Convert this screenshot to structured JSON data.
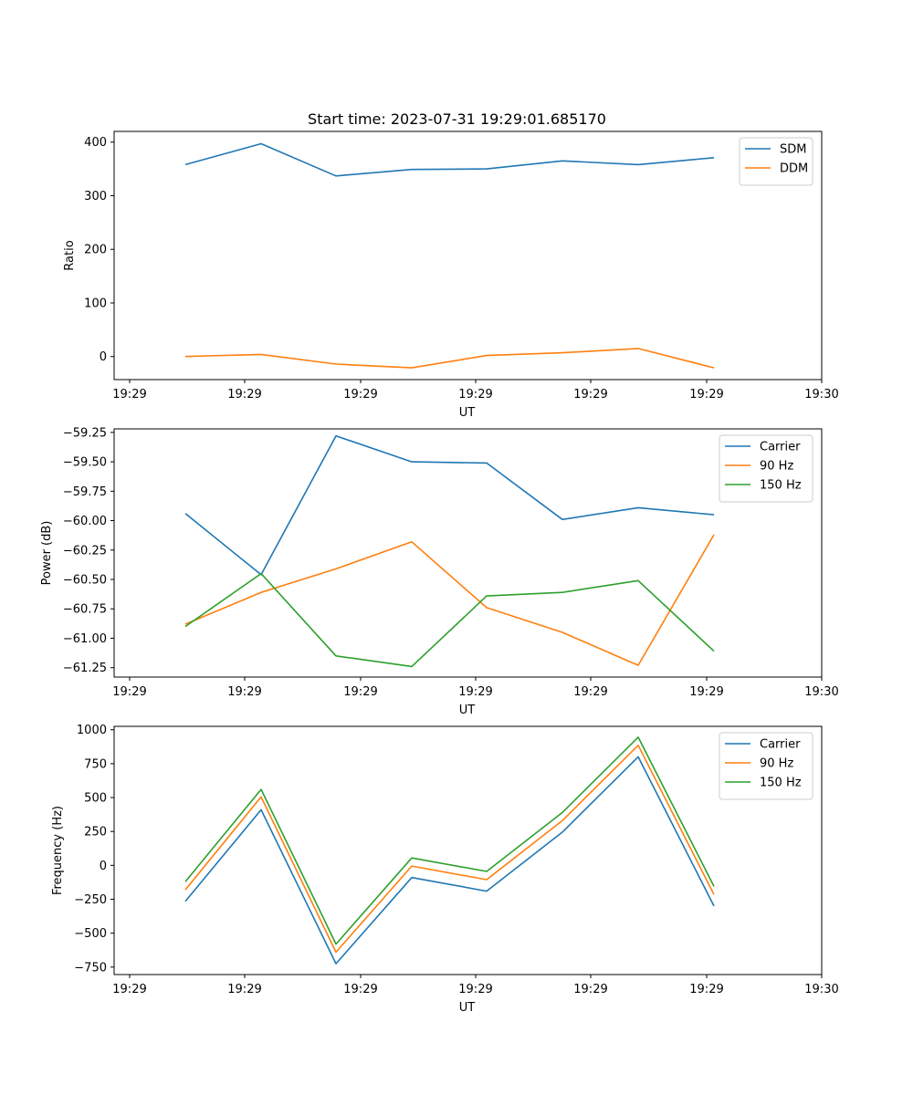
{
  "chart_data": [
    {
      "type": "line",
      "title": "Start time: 2023-07-31 19:29:01.685170",
      "xlabel": "UT",
      "ylabel": "Ratio",
      "xticks": [
        "19:29",
        "19:29",
        "19:29",
        "19:29",
        "19:29",
        "19:29",
        "19:30"
      ],
      "yticks": [
        "0",
        "100",
        "200",
        "300",
        "400"
      ],
      "ylim": [
        -43,
        420
      ],
      "legend_position": "top-right",
      "series": [
        {
          "name": "SDM",
          "color": "#1f77b4",
          "values": [
            358,
            397,
            337,
            349,
            350,
            365,
            358,
            371
          ]
        },
        {
          "name": "DDM",
          "color": "#ff7f0e",
          "values": [
            0,
            4,
            -14,
            -21,
            2,
            7,
            15,
            -21
          ]
        }
      ]
    },
    {
      "type": "line",
      "title": "",
      "xlabel": "UT",
      "ylabel": "Power (dB)",
      "xticks": [
        "19:29",
        "19:29",
        "19:29",
        "19:29",
        "19:29",
        "19:29",
        "19:30"
      ],
      "yticks": [
        "−61.25",
        "−61.00",
        "−60.75",
        "−60.50",
        "−60.25",
        "−60.00",
        "−59.75",
        "−59.50",
        "−59.25"
      ],
      "ylim": [
        -61.33,
        -59.22
      ],
      "legend_position": "top-right",
      "series": [
        {
          "name": "Carrier",
          "color": "#1f77b4",
          "values": [
            -59.94,
            -60.46,
            -59.28,
            -59.5,
            -59.51,
            -59.99,
            -59.89,
            -59.95
          ]
        },
        {
          "name": "90 Hz",
          "color": "#ff7f0e",
          "values": [
            -60.88,
            -60.61,
            -60.41,
            -60.18,
            -60.74,
            -60.95,
            -61.23,
            -60.12
          ]
        },
        {
          "name": "150 Hz",
          "color": "#2ca02c",
          "values": [
            -60.9,
            -60.45,
            -61.15,
            -61.24,
            -60.64,
            -60.61,
            -60.51,
            -61.11
          ]
        }
      ]
    },
    {
      "type": "line",
      "title": "",
      "xlabel": "UT",
      "ylabel": "Frequency (Hz)",
      "xticks": [
        "19:29",
        "19:29",
        "19:29",
        "19:29",
        "19:29",
        "19:29",
        "19:30"
      ],
      "yticks": [
        "−750",
        "−500",
        "−250",
        "0",
        "250",
        "500",
        "750",
        "1000"
      ],
      "ylim": [
        -805,
        1025
      ],
      "legend_position": "top-right",
      "series": [
        {
          "name": "Carrier",
          "color": "#1f77b4",
          "values": [
            -265,
            410,
            -725,
            -90,
            -190,
            245,
            800,
            -300
          ]
        },
        {
          "name": "90 Hz",
          "color": "#ff7f0e",
          "values": [
            -180,
            505,
            -640,
            -5,
            -105,
            330,
            885,
            -215
          ]
        },
        {
          "name": "150 Hz",
          "color": "#2ca02c",
          "values": [
            -120,
            560,
            -580,
            55,
            -45,
            390,
            945,
            -155
          ]
        }
      ]
    }
  ]
}
